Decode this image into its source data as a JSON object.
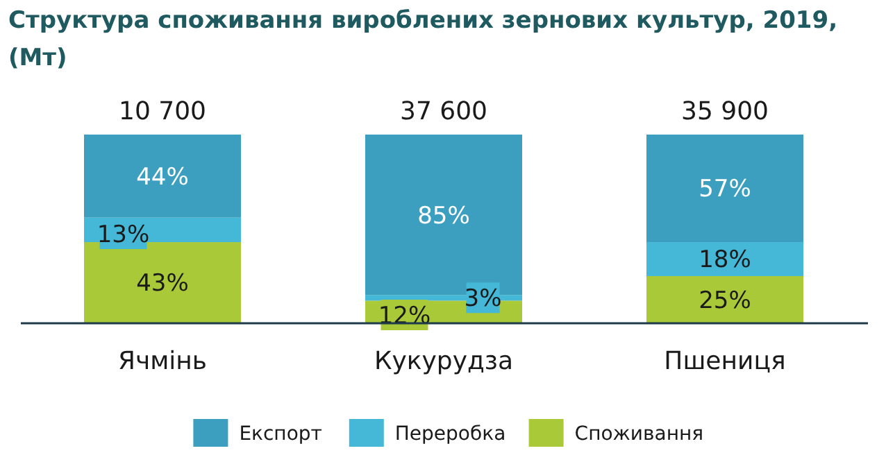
{
  "chart_data": {
    "type": "bar",
    "title": "Структура споживання вироблених зернових культур, 2019, (Мт)",
    "categories": [
      "Ячмінь",
      "Кукурудза",
      "Пшениця"
    ],
    "stacked": true,
    "ylim": [
      0,
      100
    ],
    "tick_labels": "x",
    "legend": "bottom",
    "series": [
      {
        "name": "Споживання",
        "color": "#a9c938",
        "values": [
          43,
          12,
          25
        ],
        "value_labels": [
          "43%",
          "12%",
          "25%"
        ]
      },
      {
        "name": "Переробка",
        "color": "#45b8d8",
        "values": [
          13,
          3,
          18
        ],
        "value_labels": [
          "13%",
          "3%",
          "18%"
        ]
      },
      {
        "name": "Експорт",
        "color": "#3c9fbf",
        "values": [
          44,
          85,
          57
        ],
        "value_labels": [
          "44%",
          "85%",
          "57%"
        ]
      }
    ],
    "annotations": [
      {
        "text": "10 700",
        "x": "Ячмінь",
        "y": 100
      },
      {
        "text": "37 600",
        "x": "Кукурудза",
        "y": 100
      },
      {
        "text": "35 900",
        "x": "Пшениця",
        "y": 100
      }
    ]
  }
}
